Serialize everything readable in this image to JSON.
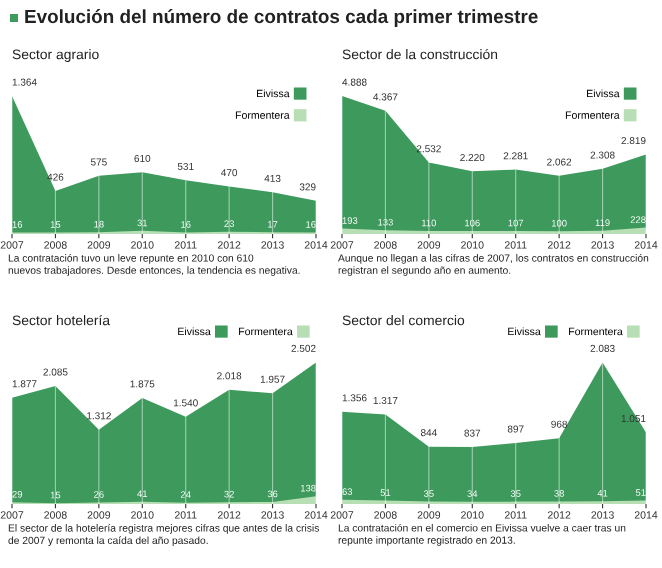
{
  "chart_data": [
    {
      "type": "area",
      "title": "Evolución del número de contratos cada primer trimestre",
      "subtitle": "Sector agrario",
      "categories": [
        "2007",
        "2008",
        "2009",
        "2010",
        "2011",
        "2012",
        "2013",
        "2014"
      ],
      "legend": "top right",
      "grid": "x",
      "series": [
        {
          "name": "Eivissa",
          "color": "#3d9a5c",
          "values": [
            1364,
            426,
            575,
            610,
            531,
            470,
            413,
            329
          ],
          "value_labels": [
            "1.364",
            "426",
            "575",
            "610",
            "531",
            "470",
            "413",
            "329"
          ]
        },
        {
          "name": "Formentera",
          "color": "#b7deb4",
          "values": [
            16,
            15,
            18,
            31,
            16,
            23,
            17,
            16
          ],
          "value_labels": [
            "16",
            "15",
            "18",
            "31",
            "16",
            "23",
            "17",
            "16"
          ]
        }
      ],
      "annotations": [
        "La contratación tuvo un leve repunte en 2010 con 610\nnuevos trabajadores. Desde entonces, la tendencia es negativa."
      ]
    },
    {
      "type": "area",
      "subtitle": "Sector de la construcción",
      "categories": [
        "2007",
        "2008",
        "2009",
        "2010",
        "2011",
        "2012",
        "2013",
        "2014"
      ],
      "legend": "top right",
      "grid": "x",
      "series": [
        {
          "name": "Eivissa",
          "color": "#3d9a5c",
          "values": [
            4888,
            4367,
            2532,
            2220,
            2281,
            2062,
            2308,
            2819
          ],
          "value_labels": [
            "4.888",
            "4.367",
            "2.532",
            "2.220",
            "2.281",
            "2.062",
            "2.308",
            "2.819"
          ]
        },
        {
          "name": "Formentera",
          "color": "#b7deb4",
          "values": [
            193,
            133,
            110,
            106,
            107,
            100,
            119,
            228
          ],
          "value_labels": [
            "193",
            "133",
            "110",
            "106",
            "107",
            "100",
            "119",
            "228"
          ]
        }
      ],
      "annotations": [
        "Aunque no llegan a las cifras de 2007, los contratos en construcción\nregistran el segundo año en aumento."
      ]
    },
    {
      "type": "area",
      "subtitle": "Sector hotelería",
      "categories": [
        "2007",
        "2008",
        "2009",
        "2010",
        "2011",
        "2012",
        "2013",
        "2014"
      ],
      "legend": "top",
      "grid": "x",
      "series": [
        {
          "name": "Eivissa",
          "color": "#3d9a5c",
          "values": [
            1877,
            2085,
            1312,
            1875,
            1540,
            2018,
            1957,
            2502
          ],
          "value_labels": [
            "1.877",
            "2.085",
            "1.312",
            "1.875",
            "1.540",
            "2.018",
            "1.957",
            "2.502"
          ]
        },
        {
          "name": "Formentera",
          "color": "#b7deb4",
          "values": [
            29,
            15,
            26,
            41,
            24,
            32,
            36,
            138
          ],
          "value_labels": [
            "29",
            "15",
            "26",
            "41",
            "24",
            "32",
            "36",
            "138"
          ]
        }
      ],
      "annotations": [
        "El sector de la hotelería registra mejores cifras que antes de la crisis\nde 2007 y remonta la caída del año pasado."
      ]
    },
    {
      "type": "area",
      "subtitle": "Sector del comercio",
      "categories": [
        "2007",
        "2008",
        "2009",
        "2010",
        "2011",
        "2012",
        "2013",
        "2014"
      ],
      "legend": "top",
      "grid": "x",
      "series": [
        {
          "name": "Eivissa",
          "color": "#3d9a5c",
          "values": [
            1356,
            1317,
            844,
            837,
            897,
            968,
            2083,
            1051
          ],
          "value_labels": [
            "1.356",
            "1.317",
            "844",
            "837",
            "897",
            "968",
            "2.083",
            "1.051"
          ]
        },
        {
          "name": "Formentera",
          "color": "#b7deb4",
          "values": [
            63,
            51,
            35,
            34,
            35,
            38,
            41,
            51
          ],
          "value_labels": [
            "63",
            "51",
            "35",
            "34",
            "35",
            "38",
            "41",
            "51"
          ]
        }
      ],
      "annotations": [
        "La contratación en el comercio en Eivissa vuelve a caer tras un\nrepunte importante registrado en 2013."
      ]
    }
  ]
}
